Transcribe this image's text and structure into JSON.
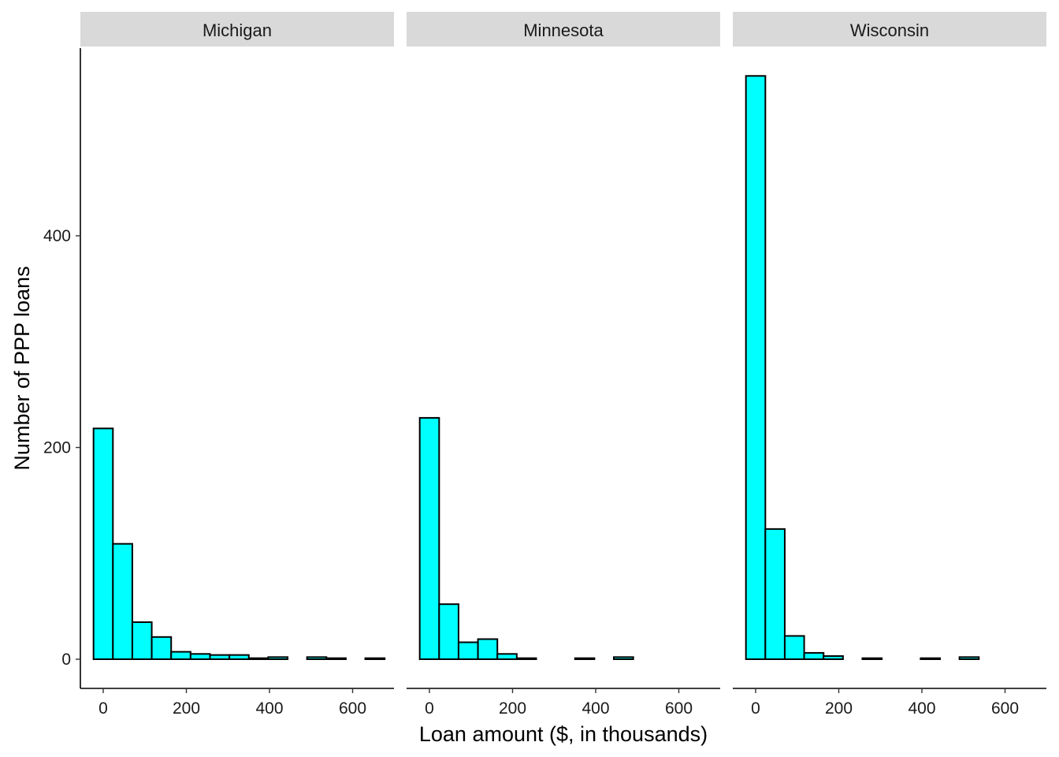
{
  "chart_data": {
    "type": "bar",
    "subtype": "faceted-histogram",
    "xlabel": "Loan amount ($, in thousands)",
    "ylabel": "Number of PPP loans",
    "x_ticks": [
      0,
      200,
      400,
      600
    ],
    "y_ticks": [
      0,
      200,
      400
    ],
    "xlim": [
      -35,
      700
    ],
    "ylim": [
      -28,
      578
    ],
    "bin_width": 46.7,
    "bin_starts": [
      -23.35,
      23.35,
      70.05,
      116.75,
      163.45,
      210.15,
      256.85,
      303.55,
      350.25,
      396.95,
      443.65,
      490.35,
      537.05,
      583.75,
      630.45
    ],
    "fill_color": "#00ffff",
    "stroke_color": "#000000",
    "facet_strip_color": "#d9d9d9",
    "facets": [
      {
        "label": "Michigan",
        "values": [
          218,
          109,
          35,
          21,
          7,
          5,
          4,
          4,
          1,
          2,
          0,
          2,
          1,
          0,
          1
        ]
      },
      {
        "label": "Minnesota",
        "values": [
          228,
          52,
          16,
          19,
          5,
          1,
          0,
          0,
          1,
          0,
          2,
          0,
          0,
          0,
          0
        ]
      },
      {
        "label": "Wisconsin",
        "values": [
          551,
          123,
          22,
          6,
          3,
          0,
          1,
          0,
          0,
          1,
          0,
          2,
          0,
          0,
          0
        ]
      }
    ]
  }
}
